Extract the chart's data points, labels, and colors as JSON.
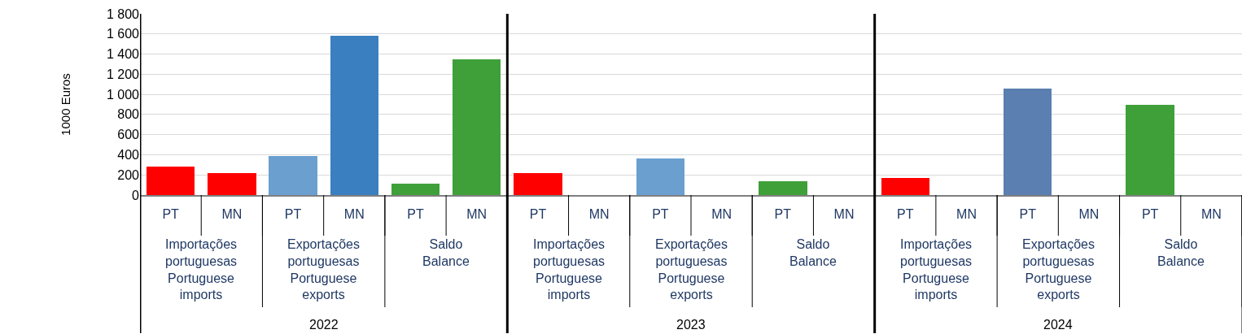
{
  "chart_data": {
    "type": "bar",
    "ylabel": "1000 Euros",
    "categories": [
      "PT",
      "MN",
      "PT",
      "MN",
      "PT",
      "MN",
      "PT",
      "MN",
      "PT",
      "MN",
      "PT",
      "MN",
      "PT",
      "MN",
      "PT",
      "MN",
      "PT",
      "MN"
    ],
    "values": [
      280,
      220,
      390,
      1580,
      110,
      1350,
      220,
      null,
      360,
      null,
      140,
      null,
      170,
      null,
      1060,
      null,
      900,
      null
    ],
    "colors": [
      "#ff0000",
      "#ff0000",
      "#6a9fd0",
      "#3a7fc0",
      "#3fa03a",
      "#3fa03a",
      "#ff0000",
      "#ff0000",
      "#6a9fd0",
      "#3a7fc0",
      "#3fa03a",
      "#3fa03a",
      "#ff0000",
      "#ff0000",
      "#5a7fb0",
      "#3a7fc0",
      "#3fa03a",
      "#3fa03a"
    ],
    "ylim": [
      0,
      1800
    ],
    "yticks": [
      0,
      200,
      400,
      600,
      800,
      {
        "value": 1000,
        "label": "1 000"
      },
      {
        "value": 1200,
        "label": "1 200"
      },
      {
        "value": 1400,
        "label": "1 400"
      },
      {
        "value": 1600,
        "label": "1 600"
      },
      {
        "value": 1800,
        "label": "1 800"
      }
    ],
    "grid": "y",
    "annotations": [
      "Importações\nportuguesas\nPortuguese\nimports",
      "Exportações\nportuguesas\nPortuguese\nexports",
      "Saldo\nBalance",
      "Importações\nportuguesas\nPortuguese\nimports",
      "Exportações\nportuguesas\nPortuguese\nexports",
      "Saldo\nBalance",
      "Importações\nportuguesas\nPortuguese\nimports",
      "Exportações\nportuguesas\nPortuguese\nexports",
      "Saldo\nBalance",
      "2022",
      "2023",
      "2024"
    ]
  }
}
